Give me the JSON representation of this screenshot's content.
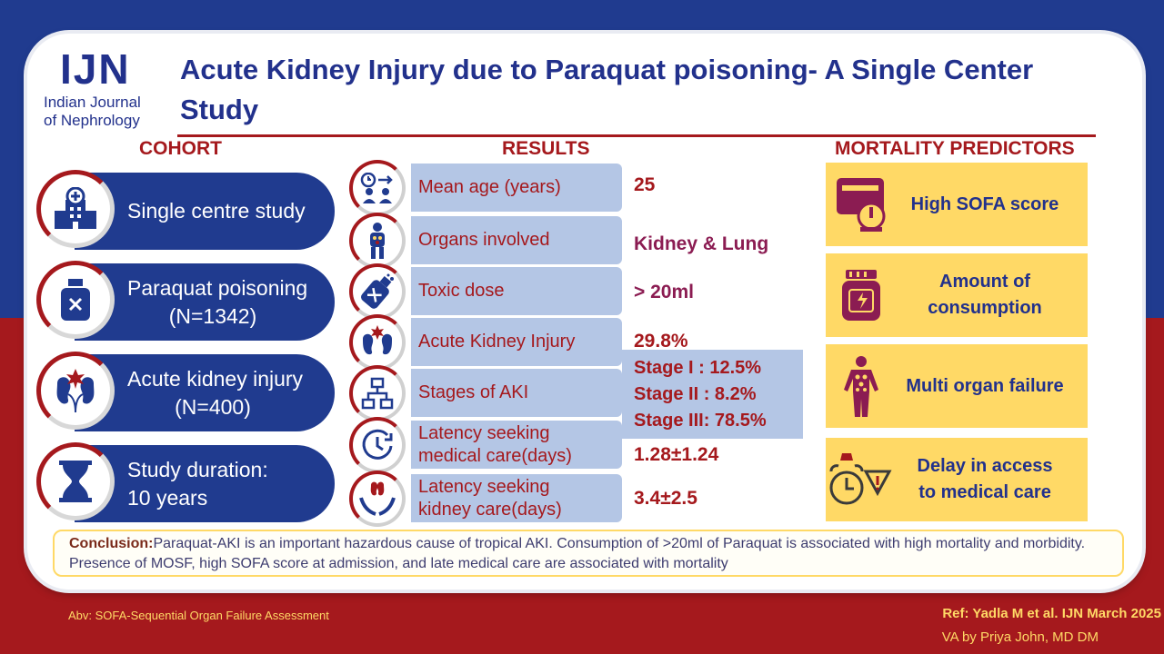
{
  "logo": {
    "abbr": "IJN",
    "line1": "Indian Journal",
    "line2": "of Nephrology"
  },
  "title": "Acute Kidney Injury due to Paraquat poisoning- A Single Center Study",
  "headers": {
    "cohort": "COHORT",
    "results": "RESULTS",
    "mortality": "MORTALITY PREDICTORS"
  },
  "cohort": [
    {
      "line1": "Single centre study",
      "line2": "",
      "icon": "hospital-icon"
    },
    {
      "line1": "Paraquat poisoning",
      "line2": "(N=1342)",
      "icon": "poison-bottle-icon"
    },
    {
      "line1": "Acute kidney injury",
      "line2": "(N=400)",
      "icon": "injured-kidney-icon"
    },
    {
      "line1": "Study duration:",
      "line2": "10 years",
      "icon": "hourglass-icon"
    }
  ],
  "results": [
    {
      "label1": "Mean age (years)",
      "label2": "",
      "value": "25",
      "icon": "age-icon"
    },
    {
      "label1": "Organs involved",
      "label2": "",
      "value": "Kidney & Lung",
      "icon": "organs-icon"
    },
    {
      "label1": "Toxic dose",
      "label2": "",
      "value": "> 20ml",
      "icon": "toxic-bottle-icon"
    },
    {
      "label1": "Acute Kidney Injury",
      "label2": "",
      "value": "29.8%",
      "icon": "kidney-injury-icon"
    },
    {
      "label1": "Stages of AKI",
      "label2": "",
      "value": "",
      "icon": "hierarchy-icon"
    },
    {
      "label1": "Latency seeking",
      "label2": "medical care(days)",
      "value": "1.28±1.24",
      "icon": "clock-icon"
    },
    {
      "label1": "Latency seeking",
      "label2": "kidney care(days)",
      "value": "3.4±2.5",
      "icon": "kidney-care-icon"
    }
  ],
  "stages": [
    "Stage I  : 12.5%",
    "Stage II : 8.2%",
    "Stage III: 78.5%"
  ],
  "mortality": [
    {
      "line1": "High SOFA score",
      "line2": "",
      "icon": "sofa-score-icon"
    },
    {
      "line1": "Amount of",
      "line2": "consumption",
      "icon": "jar-icon"
    },
    {
      "line1": "Multi organ failure",
      "line2": "",
      "icon": "body-organs-icon"
    },
    {
      "line1": "Delay in access",
      "line2": "to medical care",
      "icon": "alarm-clock-icon"
    }
  ],
  "conclusion": {
    "label": "Conclusion:",
    "text": "Paraquat-AKI is an important hazardous cause of tropical AKI. Consumption of >20ml of Paraquat is associated with high mortality and morbidity. Presence of MOSF, high SOFA score at admission, and late medical care are associated with mortality"
  },
  "footer": {
    "abv": "Abv: SOFA-Sequential Organ Failure Assessment",
    "ref": "Ref: Yadla M et al.  IJN March 2025",
    "va": "VA by Priya John, MD DM"
  },
  "colors": {
    "navy": "#203b8f",
    "red": "#a5191d",
    "yellow": "#ffd966",
    "lightblue": "#b4c6e5"
  }
}
